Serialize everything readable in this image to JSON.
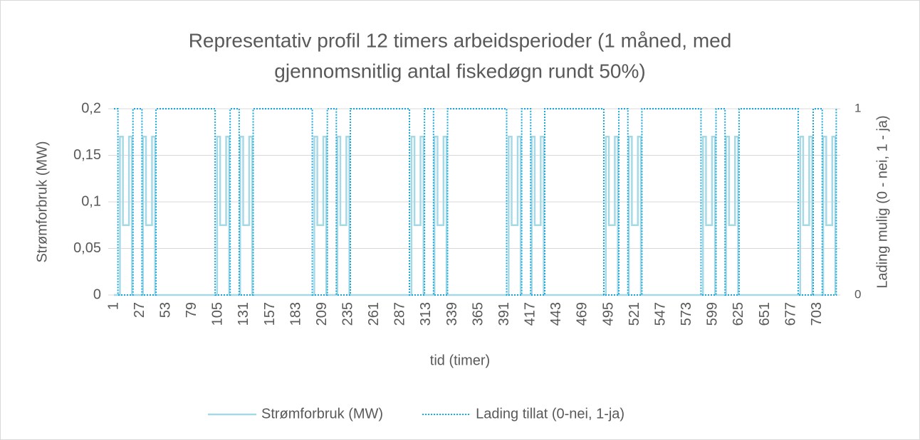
{
  "chart_data": {
    "type": "line",
    "title": [
      "Representativ profil 12 timers arbeidsperioder (1 måned, med",
      "gjennomsnitlig antal fiskedøgn rundt 50%)"
    ],
    "x_label": "tid (timer)",
    "y_label": "Strømforbruk (MW)",
    "y2_label": "Lading mulig (0 - nei, 1 - ja)",
    "xlim": [
      1,
      726
    ],
    "xticks": [
      1,
      27,
      53,
      79,
      105,
      131,
      157,
      183,
      209,
      235,
      261,
      287,
      313,
      339,
      365,
      391,
      417,
      443,
      469,
      495,
      521,
      547,
      573,
      599,
      625,
      651,
      677,
      703
    ],
    "ylim": [
      0,
      0.2
    ],
    "yticks": [
      0,
      {
        "value": 0.05,
        "label": "0,05"
      },
      {
        "value": 0.1,
        "label": "0,1"
      },
      {
        "value": 0.15,
        "label": "0,15"
      },
      {
        "value": 0.2,
        "label": "0,2"
      }
    ],
    "y2lim": [
      0,
      1
    ],
    "y2ticks": [
      0,
      1
    ],
    "grid": true,
    "legend": "bottom",
    "series": [
      {
        "name": "Strømforbruk (MW)",
        "color": "#a6d9e6",
        "style": "solid",
        "x": [
          1,
          7,
          7,
          10,
          10,
          16,
          16,
          19,
          19,
          30,
          30,
          33,
          33,
          39,
          39,
          42,
          42,
          104,
          104,
          107,
          107,
          113,
          113,
          116,
          116,
          127,
          127,
          130,
          130,
          136,
          136,
          139,
          139,
          201,
          201,
          204,
          204,
          210,
          210,
          213,
          213,
          224,
          224,
          227,
          227,
          233,
          233,
          236,
          236,
          298,
          298,
          301,
          301,
          307,
          307,
          310,
          310,
          321,
          321,
          324,
          324,
          330,
          330,
          333,
          333,
          395,
          395,
          398,
          398,
          404,
          404,
          407,
          407,
          418,
          418,
          421,
          421,
          427,
          427,
          430,
          430,
          492,
          492,
          495,
          495,
          501,
          501,
          504,
          504,
          515,
          515,
          518,
          518,
          524,
          524,
          527,
          527,
          589,
          589,
          592,
          592,
          598,
          598,
          601,
          601,
          612,
          612,
          615,
          615,
          621,
          621,
          624,
          624,
          686,
          686,
          689,
          689,
          695,
          695,
          698,
          698,
          709,
          709,
          712,
          712,
          718,
          718,
          721,
          721
        ],
        "values": [
          0,
          0,
          0.17,
          0.17,
          0.075,
          0.075,
          0.17,
          0.17,
          0,
          0,
          0.17,
          0.17,
          0.075,
          0.075,
          0.17,
          0.17,
          0,
          0,
          0.17,
          0.17,
          0.075,
          0.075,
          0.17,
          0.17,
          0,
          0,
          0.17,
          0.17,
          0.075,
          0.075,
          0.17,
          0.17,
          0,
          0,
          0.17,
          0.17,
          0.075,
          0.075,
          0.17,
          0.17,
          0,
          0,
          0.17,
          0.17,
          0.075,
          0.075,
          0.17,
          0.17,
          0,
          0,
          0.17,
          0.17,
          0.075,
          0.075,
          0.17,
          0.17,
          0,
          0,
          0.17,
          0.17,
          0.075,
          0.075,
          0.17,
          0.17,
          0,
          0,
          0.17,
          0.17,
          0.075,
          0.075,
          0.17,
          0.17,
          0,
          0,
          0.17,
          0.17,
          0.075,
          0.075,
          0.17,
          0.17,
          0,
          0,
          0.17,
          0.17,
          0.075,
          0.075,
          0.17,
          0.17,
          0,
          0,
          0.17,
          0.17,
          0.075,
          0.075,
          0.17,
          0.17,
          0,
          0,
          0.17,
          0.17,
          0.075,
          0.075,
          0.17,
          0.17,
          0,
          0,
          0.17,
          0.17,
          0.075,
          0.075,
          0.17,
          0.17,
          0,
          0,
          0.17,
          0.17,
          0.075,
          0.075,
          0.17,
          0.17,
          0,
          0,
          0.17,
          0.17,
          0.075,
          0.075,
          0.17,
          0.17,
          0
        ]
      },
      {
        "name": "Lading tillat (0-nei, 1-ja)",
        "color": "#1aa7d8",
        "style": "dotted",
        "axis": "y2",
        "x": [
          1,
          5,
          5,
          20,
          20,
          29,
          29,
          43,
          43,
          102,
          102,
          117,
          117,
          126,
          126,
          140,
          140,
          199,
          199,
          214,
          214,
          223,
          223,
          237,
          237,
          296,
          296,
          311,
          311,
          320,
          320,
          334,
          334,
          393,
          393,
          408,
          408,
          417,
          417,
          431,
          431,
          490,
          490,
          505,
          505,
          514,
          514,
          528,
          528,
          587,
          587,
          602,
          602,
          611,
          611,
          625,
          625,
          684,
          684,
          699,
          699,
          708,
          708,
          722,
          722
        ],
        "values": [
          1,
          1,
          0,
          0,
          1,
          1,
          0,
          0,
          1,
          1,
          0,
          0,
          1,
          1,
          0,
          0,
          1,
          1,
          0,
          0,
          1,
          1,
          0,
          0,
          1,
          1,
          0,
          0,
          1,
          1,
          0,
          0,
          1,
          1,
          0,
          0,
          1,
          1,
          0,
          0,
          1,
          1,
          0,
          0,
          1,
          1,
          0,
          0,
          1,
          1,
          0,
          0,
          1,
          1,
          0,
          0,
          1,
          1,
          0,
          0,
          1,
          1,
          0,
          0,
          1
        ]
      }
    ]
  }
}
